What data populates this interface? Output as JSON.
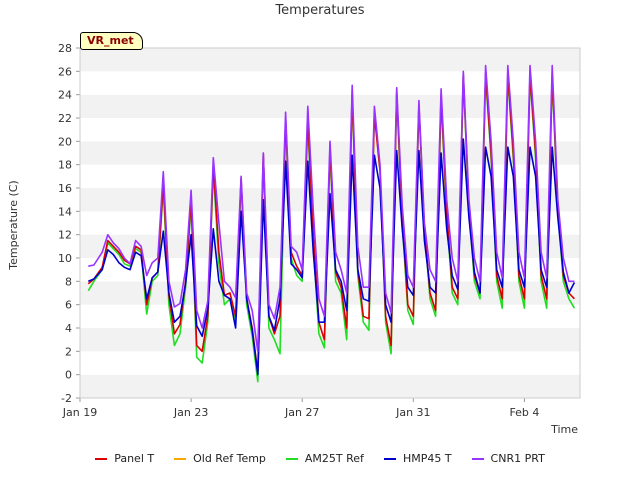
{
  "chart_data": {
    "type": "line",
    "title": "Temperatures",
    "xlabel": "Time",
    "ylabel": "Temperature (C)",
    "ylim": [
      -2,
      28
    ],
    "yticks": [
      -2,
      0,
      2,
      4,
      6,
      8,
      10,
      12,
      14,
      16,
      18,
      20,
      22,
      24,
      26,
      28
    ],
    "xlim": [
      0,
      18
    ],
    "xticks": [
      {
        "value": 0,
        "label": "Jan 19"
      },
      {
        "value": 4,
        "label": "Jan 23"
      },
      {
        "value": 8,
        "label": "Jan 27"
      },
      {
        "value": 12,
        "label": "Jan 31"
      },
      {
        "value": 16,
        "label": "Feb 4"
      }
    ],
    "badge": "VR_met",
    "series_colors": {
      "Panel T": "#dd0000",
      "Old Ref Temp": "#ffa500",
      "AM25T Ref": "#22dd22",
      "HMP45 T": "#0000cc",
      "CNR1 PRT": "#9933ff"
    },
    "series": [
      {
        "name": "CNR1 PRT",
        "x": [
          0.3,
          0.5,
          0.8,
          1.0,
          1.2,
          1.4,
          1.6,
          1.8,
          2.0,
          2.2,
          2.4,
          2.6,
          2.8,
          3.0,
          3.2,
          3.4,
          3.6,
          3.8,
          4.0,
          4.2,
          4.4,
          4.6,
          4.8,
          5.0,
          5.2,
          5.4,
          5.6,
          5.8,
          6.0,
          6.2,
          6.4,
          6.6,
          6.8,
          7.0,
          7.2,
          7.4,
          7.6,
          7.8,
          8.0,
          8.2,
          8.4,
          8.6,
          8.8,
          9.0,
          9.2,
          9.4,
          9.6,
          9.8,
          10.0,
          10.2,
          10.4,
          10.6,
          10.8,
          11.0,
          11.2,
          11.4,
          11.6,
          11.8,
          12.0,
          12.2,
          12.4,
          12.6,
          12.8,
          13.0,
          13.2,
          13.4,
          13.6,
          13.8,
          14.0,
          14.2,
          14.4,
          14.6,
          14.8,
          15.0,
          15.2,
          15.4,
          15.6,
          15.8,
          16.0,
          16.2,
          16.4,
          16.6,
          16.8,
          17.0,
          17.2,
          17.4,
          17.6,
          17.8
        ],
        "y": [
          9.3,
          9.4,
          10.5,
          12.0,
          11.3,
          10.8,
          10.0,
          9.5,
          11.5,
          11.0,
          8.5,
          9.6,
          10.0,
          17.4,
          8.0,
          5.8,
          6.1,
          9.0,
          15.8,
          5.5,
          4.0,
          6.3,
          18.6,
          13.0,
          8.0,
          7.5,
          6.6,
          17.0,
          7.0,
          5.5,
          2.0,
          19.0,
          6.0,
          4.8,
          7.5,
          22.5,
          11.0,
          10.5,
          9.0,
          23.0,
          14.0,
          6.5,
          5.0,
          20.0,
          10.5,
          9.0,
          7.0,
          24.8,
          11.0,
          7.5,
          7.5,
          23.0,
          18.0,
          7.0,
          5.3,
          24.6,
          14.5,
          8.5,
          7.5,
          23.5,
          13.0,
          9.0,
          8.0,
          24.5,
          15.0,
          10.0,
          8.0,
          26.0,
          15.0,
          10.0,
          8.0,
          26.5,
          20.0,
          10.5,
          8.3,
          26.5,
          20.0,
          10.5,
          8.3,
          26.5,
          20.0,
          10.5,
          8.3,
          26.5,
          15.0,
          10.0,
          8.0,
          8.0
        ],
        "note": "approximate envelope readings"
      },
      {
        "name": "HMP45 T",
        "x": [
          0.3,
          0.5,
          0.8,
          1.0,
          1.2,
          1.4,
          1.6,
          1.8,
          2.0,
          2.2,
          2.4,
          2.6,
          2.8,
          3.0,
          3.2,
          3.4,
          3.6,
          3.8,
          4.0,
          4.2,
          4.4,
          4.6,
          4.8,
          5.0,
          5.2,
          5.4,
          5.6,
          5.8,
          6.0,
          6.2,
          6.4,
          6.6,
          6.8,
          7.0,
          7.2,
          7.4,
          7.6,
          7.8,
          8.0,
          8.2,
          8.4,
          8.6,
          8.8,
          9.0,
          9.2,
          9.4,
          9.6,
          9.8,
          10.0,
          10.2,
          10.4,
          10.6,
          10.8,
          11.0,
          11.2,
          11.4,
          11.6,
          11.8,
          12.0,
          12.2,
          12.4,
          12.6,
          12.8,
          13.0,
          13.2,
          13.4,
          13.6,
          13.8,
          14.0,
          14.2,
          14.4,
          14.6,
          14.8,
          15.0,
          15.2,
          15.4,
          15.6,
          15.8,
          16.0,
          16.2,
          16.4,
          16.6,
          16.8,
          17.0,
          17.2,
          17.4,
          17.6,
          17.8
        ],
        "y": [
          8.0,
          8.2,
          9.0,
          10.7,
          10.3,
          9.6,
          9.2,
          9.0,
          10.5,
          10.2,
          6.5,
          8.3,
          8.8,
          12.3,
          7.0,
          4.5,
          5.0,
          7.8,
          12.0,
          4.2,
          3.3,
          5.6,
          12.5,
          8.0,
          6.8,
          6.5,
          4.0,
          14.0,
          6.5,
          3.8,
          0.0,
          15.0,
          5.0,
          3.8,
          6.5,
          18.3,
          9.5,
          9.0,
          8.3,
          18.3,
          10.5,
          4.5,
          4.5,
          15.5,
          9.0,
          8.0,
          5.5,
          18.8,
          9.0,
          6.5,
          6.3,
          18.8,
          16.0,
          6.0,
          4.5,
          19.2,
          12.5,
          7.5,
          6.8,
          19.2,
          11.5,
          7.5,
          7.0,
          19.0,
          12.5,
          8.5,
          7.3,
          20.2,
          13.5,
          8.8,
          7.0,
          19.5,
          17.0,
          9.0,
          7.5,
          19.5,
          17.0,
          9.0,
          7.5,
          19.5,
          17.0,
          9.0,
          7.5,
          19.5,
          13.5,
          8.8,
          7.0,
          7.9
        ],
        "note": "approximate envelope readings"
      },
      {
        "name": "AM25T Ref",
        "x": [
          0.3,
          0.5,
          0.8,
          1.0,
          1.2,
          1.4,
          1.6,
          1.8,
          2.0,
          2.2,
          2.4,
          2.6,
          2.8,
          3.0,
          3.2,
          3.4,
          3.6,
          3.8,
          4.0,
          4.2,
          4.4,
          4.6,
          4.8,
          5.0,
          5.2,
          5.4,
          5.6,
          5.8,
          6.0,
          6.2,
          6.4,
          6.6,
          6.8,
          7.0,
          7.2,
          7.4,
          7.6,
          7.8,
          8.0,
          8.2,
          8.4,
          8.6,
          8.8,
          9.0,
          9.2,
          9.4,
          9.6,
          9.8,
          10.0,
          10.2,
          10.4,
          10.6,
          10.8,
          11.0,
          11.2,
          11.4,
          11.6,
          11.8,
          12.0,
          12.2,
          12.4,
          12.6,
          12.8,
          13.0,
          13.2,
          13.4,
          13.6,
          13.8,
          14.0,
          14.2,
          14.4,
          14.6,
          14.8,
          15.0,
          15.2,
          15.4,
          15.6,
          15.8,
          16.0,
          16.2,
          16.4,
          16.6,
          16.8,
          17.0,
          17.2,
          17.4,
          17.6,
          17.8
        ],
        "y": [
          7.2,
          8.0,
          9.0,
          11.3,
          10.8,
          10.3,
          9.5,
          9.3,
          10.8,
          10.5,
          5.2,
          8.0,
          8.5,
          16.0,
          6.0,
          2.5,
          3.5,
          7.5,
          14.5,
          1.5,
          1.0,
          4.5,
          17.5,
          9.5,
          6.0,
          6.5,
          4.5,
          16.5,
          6.0,
          3.3,
          -0.6,
          18.5,
          4.0,
          3.0,
          1.8,
          21.5,
          10.0,
          8.5,
          8.0,
          21.5,
          11.0,
          3.5,
          2.3,
          19.0,
          8.0,
          7.0,
          3.0,
          24.0,
          8.5,
          4.5,
          3.8,
          22.5,
          17.5,
          4.5,
          1.8,
          24.0,
          13.0,
          5.5,
          4.3,
          23.0,
          12.5,
          6.5,
          5.0,
          23.5,
          13.5,
          7.0,
          6.0,
          25.5,
          14.0,
          8.0,
          6.5,
          25.5,
          18.5,
          8.0,
          5.7,
          25.5,
          18.5,
          8.0,
          5.7,
          25.5,
          18.5,
          8.0,
          5.7,
          25.5,
          14.0,
          8.0,
          6.5,
          5.7
        ],
        "note": "approximate envelope readings"
      },
      {
        "name": "Panel T",
        "x": [
          0.3,
          0.5,
          0.8,
          1.0,
          1.2,
          1.4,
          1.6,
          1.8,
          2.0,
          2.2,
          2.4,
          2.6,
          2.8,
          3.0,
          3.2,
          3.4,
          3.6,
          3.8,
          4.0,
          4.2,
          4.4,
          4.6,
          4.8,
          5.0,
          5.2,
          5.4,
          5.6,
          5.8,
          6.0,
          6.2,
          6.4,
          6.6,
          6.8,
          7.0,
          7.2,
          7.4,
          7.6,
          7.8,
          8.0,
          8.2,
          8.4,
          8.6,
          8.8,
          9.0,
          9.2,
          9.4,
          9.6,
          9.8,
          10.0,
          10.2,
          10.4,
          10.6,
          10.8,
          11.0,
          11.2,
          11.4,
          11.6,
          11.8,
          12.0,
          12.2,
          12.4,
          12.6,
          12.8,
          13.0,
          13.2,
          13.4,
          13.6,
          13.8,
          14.0,
          14.2,
          14.4,
          14.6,
          14.8,
          15.0,
          15.2,
          15.4,
          15.6,
          15.8,
          16.0,
          16.2,
          16.4,
          16.6,
          16.8,
          17.0,
          17.2,
          17.4,
          17.6,
          17.8
        ],
        "y": [
          7.8,
          8.2,
          9.2,
          11.5,
          11.0,
          10.5,
          9.8,
          9.5,
          11.0,
          10.7,
          6.0,
          8.3,
          8.8,
          16.5,
          6.8,
          3.5,
          4.3,
          8.0,
          15.0,
          2.5,
          2.0,
          5.0,
          18.0,
          10.5,
          6.8,
          7.0,
          5.0,
          16.8,
          6.5,
          4.0,
          0.2,
          19.0,
          5.0,
          3.5,
          5.0,
          22.0,
          10.5,
          9.3,
          8.5,
          22.0,
          12.0,
          4.5,
          3.0,
          19.5,
          8.8,
          7.5,
          4.0,
          24.3,
          9.0,
          5.0,
          4.8,
          22.3,
          17.5,
          5.0,
          2.5,
          24.2,
          13.5,
          6.0,
          5.0,
          23.2,
          12.5,
          7.0,
          5.5,
          24.0,
          14.0,
          7.5,
          6.5,
          25.8,
          14.5,
          8.5,
          7.0,
          25.8,
          19.0,
          8.5,
          6.5,
          25.8,
          19.0,
          8.5,
          6.5,
          25.8,
          19.0,
          8.5,
          6.5,
          25.8,
          14.5,
          8.5,
          7.0,
          6.5
        ],
        "note": "approximate envelope readings"
      },
      {
        "name": "Old Ref Temp",
        "x": [],
        "y": [],
        "note": "no visible data"
      }
    ],
    "legend": [
      "Panel T",
      "Old Ref Temp",
      "AM25T Ref",
      "HMP45 T",
      "CNR1 PRT"
    ],
    "legend_position": "bottom-center",
    "grid": "horizontal-bands"
  }
}
